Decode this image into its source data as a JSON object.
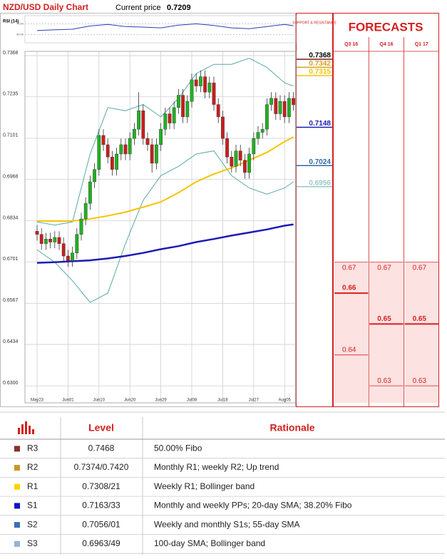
{
  "chart_data": [
    {
      "type": "candlestick",
      "title": "NZD/USD Daily Chart",
      "subtitle": "Current price",
      "current_price": 0.7209,
      "up_color": "#22b022",
      "down_color": "#c81e1e",
      "grid": true,
      "categories": [
        "May23",
        null,
        null,
        null,
        null,
        null,
        null,
        "Jun01",
        null,
        null,
        null,
        null,
        null,
        null,
        "Jun10",
        null,
        null,
        null,
        null,
        null,
        null,
        "Jun20",
        null,
        null,
        null,
        null,
        null,
        null,
        "Jun29",
        null,
        null,
        null,
        null,
        null,
        null,
        "Jul08",
        null,
        null,
        null,
        null,
        null,
        null,
        "Jul18",
        null,
        null,
        null,
        null,
        null,
        null,
        "Jul27",
        null,
        null,
        null,
        null,
        null,
        null,
        "Aug05",
        null,
        null
      ],
      "open": [
        0.68,
        0.679,
        0.676,
        0.6775,
        0.6765,
        0.678,
        0.676,
        0.672,
        0.6705,
        0.673,
        0.679,
        0.684,
        0.689,
        0.696,
        0.7,
        0.711,
        0.708,
        0.704,
        0.7,
        0.705,
        0.708,
        0.705,
        0.71,
        0.713,
        0.719,
        0.71,
        0.708,
        0.702,
        0.708,
        0.713,
        0.718,
        0.715,
        0.72,
        0.724,
        0.717,
        0.722,
        0.729,
        0.727,
        0.73,
        0.725,
        0.728,
        0.721,
        0.717,
        0.71,
        0.704,
        0.701,
        0.706,
        0.703,
        0.699,
        0.705,
        0.71,
        0.712,
        0.713,
        0.721,
        0.723,
        0.718,
        0.722,
        0.717,
        0.723
      ],
      "high": [
        0.682,
        0.681,
        0.6795,
        0.6795,
        0.68,
        0.68,
        0.678,
        0.674,
        0.675,
        0.681,
        0.686,
        0.691,
        0.698,
        0.702,
        0.713,
        0.713,
        0.71,
        0.706,
        0.707,
        0.71,
        0.71,
        0.712,
        0.715,
        0.725,
        0.721,
        0.712,
        0.71,
        0.71,
        0.715,
        0.72,
        0.72,
        0.722,
        0.726,
        0.726,
        0.724,
        0.731,
        0.731,
        0.732,
        0.732,
        0.73,
        0.73,
        0.723,
        0.719,
        0.712,
        0.706,
        0.708,
        0.708,
        0.705,
        0.707,
        0.712,
        0.714,
        0.715,
        0.723,
        0.725,
        0.725,
        0.724,
        0.724,
        0.725,
        0.725
      ],
      "low": [
        0.677,
        0.674,
        0.674,
        0.6745,
        0.6745,
        0.674,
        0.67,
        0.6685,
        0.6685,
        0.671,
        0.677,
        0.682,
        0.687,
        0.694,
        0.698,
        0.706,
        0.702,
        0.698,
        0.698,
        0.703,
        0.703,
        0.703,
        0.708,
        0.711,
        0.708,
        0.706,
        0.699,
        0.7,
        0.706,
        0.711,
        0.713,
        0.713,
        0.718,
        0.715,
        0.715,
        0.72,
        0.725,
        0.725,
        0.723,
        0.723,
        0.719,
        0.715,
        0.708,
        0.702,
        0.699,
        0.699,
        0.701,
        0.697,
        0.697,
        0.703,
        0.708,
        0.71,
        0.711,
        0.719,
        0.716,
        0.716,
        0.715,
        0.715,
        0.719
      ],
      "close": [
        0.679,
        0.676,
        0.6775,
        0.6765,
        0.678,
        0.676,
        0.672,
        0.6705,
        0.673,
        0.679,
        0.684,
        0.689,
        0.696,
        0.7,
        0.711,
        0.708,
        0.704,
        0.7,
        0.705,
        0.708,
        0.705,
        0.71,
        0.713,
        0.719,
        0.71,
        0.708,
        0.702,
        0.708,
        0.713,
        0.718,
        0.715,
        0.72,
        0.724,
        0.717,
        0.722,
        0.729,
        0.727,
        0.73,
        0.725,
        0.728,
        0.721,
        0.717,
        0.71,
        0.704,
        0.701,
        0.706,
        0.703,
        0.699,
        0.705,
        0.71,
        0.712,
        0.713,
        0.721,
        0.723,
        0.718,
        0.722,
        0.717,
        0.723,
        0.7209
      ],
      "series": [
        {
          "color": "#5aa8a8",
          "width": 1,
          "x": [
            0,
            4,
            8,
            12,
            16,
            20,
            24,
            28,
            32,
            36,
            40,
            44,
            48,
            52,
            56,
            58
          ],
          "values": [
            0.683,
            0.682,
            0.683,
            0.705,
            0.72,
            0.719,
            0.721,
            0.717,
            0.723,
            0.731,
            0.734,
            0.734,
            0.736,
            0.733,
            0.728,
            0.727
          ]
        },
        {
          "color": "#5aa8a8",
          "width": 1,
          "x": [
            0,
            4,
            8,
            12,
            16,
            20,
            24,
            28,
            32,
            36,
            40,
            44,
            48,
            52,
            56,
            58
          ],
          "values": [
            0.674,
            0.67,
            0.664,
            0.657,
            0.66,
            0.676,
            0.69,
            0.698,
            0.701,
            0.705,
            0.706,
            0.698,
            0.694,
            0.692,
            0.694,
            0.696
          ]
        },
        {
          "color": "#f5c400",
          "width": 2,
          "x": [
            0,
            4,
            8,
            12,
            16,
            20,
            24,
            28,
            32,
            36,
            40,
            44,
            48,
            52,
            56,
            58
          ],
          "values": [
            0.6833,
            0.6833,
            0.6833,
            0.684,
            0.685,
            0.6862,
            0.6878,
            0.6895,
            0.6925,
            0.696,
            0.6985,
            0.7005,
            0.703,
            0.7055,
            0.709,
            0.7105
          ]
        },
        {
          "color": "#1c1cb4",
          "width": 2.5,
          "x": [
            0,
            4,
            8,
            12,
            16,
            20,
            24,
            28,
            32,
            36,
            40,
            44,
            48,
            52,
            56,
            58
          ],
          "values": [
            0.6698,
            0.67,
            0.6703,
            0.6706,
            0.6712,
            0.672,
            0.673,
            0.6742,
            0.6752,
            0.6765,
            0.6775,
            0.6786,
            0.6796,
            0.6806,
            0.6818,
            0.6822
          ]
        }
      ],
      "ylim": [
        0.6245,
        0.7382
      ],
      "yticks": [
        0.7368,
        0.7235,
        0.7101,
        0.6968,
        0.6834,
        0.6701,
        0.6567,
        0.6434,
        {
          "value": 0.63,
          "label": "0.6300"
        }
      ],
      "rsi": {
        "title": "RSI (14)",
        "color": "#2a3fb0",
        "ylim": [
          0,
          100
        ],
        "yticks": [
          {
            "value": 30,
            "label": "30.00"
          },
          {
            "value": 70,
            "label": "70.00"
          }
        ],
        "x": [
          0,
          4,
          8,
          12,
          16,
          20,
          24,
          28,
          32,
          36,
          40,
          44,
          48,
          52,
          56,
          58
        ],
        "values": [
          45,
          48,
          50,
          62,
          68,
          60,
          58,
          55,
          65,
          70,
          64,
          55,
          52,
          60,
          68,
          63
        ]
      },
      "support_resistance": {
        "title": "SUPPORT & RESISTANCE",
        "values": [
          0.7368,
          0.7342,
          0.7315,
          0.7148,
          0.7024,
          0.6956
        ],
        "colors": [
          "#7a1a1a",
          "#d4a21c",
          "#f2c200",
          "#1c1cb4",
          "#2f6aa8",
          "#9cc6c6"
        ]
      }
    },
    {
      "type": "forecast",
      "title": "FORECASTS",
      "color": "#d42020",
      "fill": "#fde2e2",
      "categories": [
        "Q3 16",
        "Q4 16",
        "Q1 17"
      ],
      "values": [
        [
          0.67,
          0.66,
          0.64
        ],
        [
          0.67,
          0.65,
          0.63
        ],
        [
          0.67,
          0.65,
          0.63
        ]
      ],
      "ylim": [
        0.6245,
        0.7382
      ]
    }
  ],
  "table": {
    "header": [
      "Level",
      "Rationale"
    ],
    "colors": [
      "#8b2c2c",
      "#c8962a",
      "#ffd200",
      "#1010c8",
      "#3a6fb0",
      "#9ab0d8"
    ],
    "rows": [
      [
        "R3",
        "0.7468",
        "50.00% Fibo"
      ],
      [
        "R2",
        "0.7374/0.7420",
        "Monthly R1; weekly R2; Up trend"
      ],
      [
        "R1",
        "0.7308/21",
        "Weekly R1; Bollinger band"
      ],
      [
        "S1",
        "0.7163/33",
        "Monthly and weekly PPs; 20-day SMA; 38.20% Fibo"
      ],
      [
        "S2",
        "0.7056/01",
        "Weekly and monthly S1s; 55-day SMA"
      ],
      [
        "S3",
        "0.6963/49",
        "100-day SMA; Bollinger band"
      ]
    ]
  }
}
